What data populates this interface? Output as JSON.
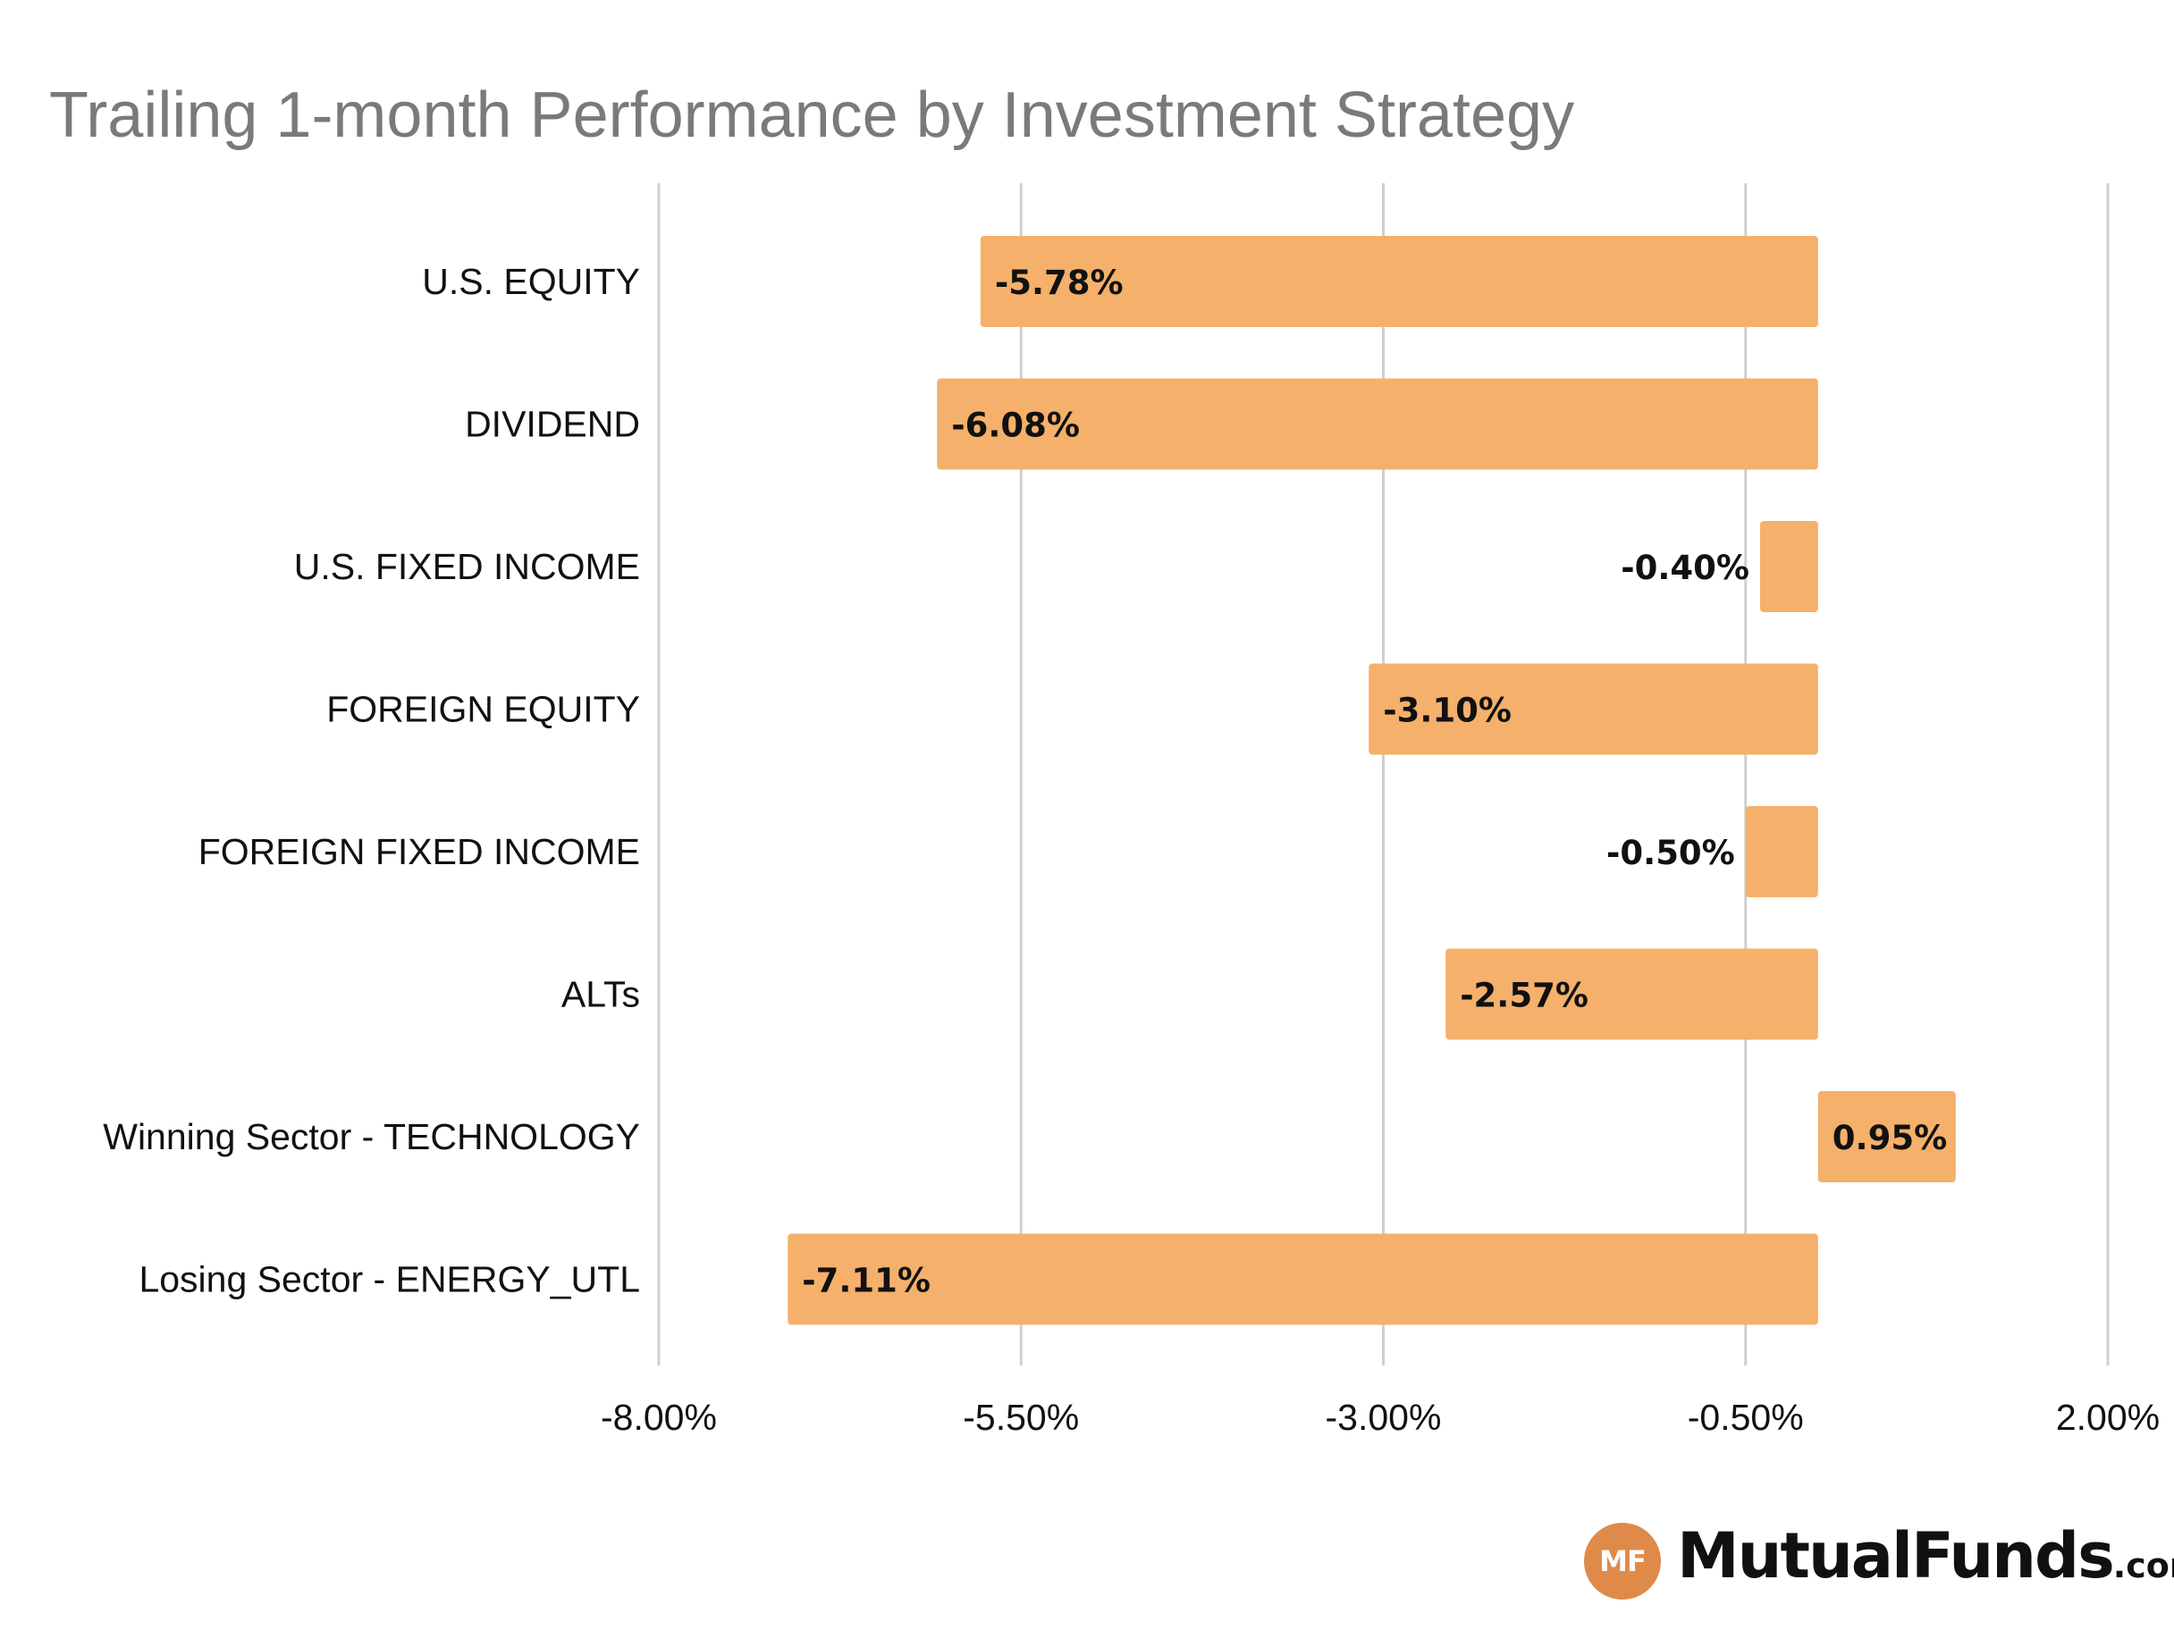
{
  "chart_data": {
    "type": "bar",
    "orientation": "horizontal",
    "title": "Trailing 1-month Performance by Investment Strategy",
    "xlabel": "",
    "ylabel": "",
    "categories": [
      "U.S. EQUITY",
      "DIVIDEND",
      "U.S. FIXED INCOME",
      "FOREIGN EQUITY",
      "FOREIGN FIXED INCOME",
      "ALTs",
      "Winning Sector - TECHNOLOGY",
      "Losing Sector - ENERGY_UTL"
    ],
    "values": [
      -5.78,
      -6.08,
      -0.4,
      -3.1,
      -0.5,
      -2.57,
      0.95,
      -7.11
    ],
    "data_labels": [
      "-5.78%",
      "-6.08%",
      "-0.40%",
      "-3.10%",
      "-0.50%",
      "-2.57%",
      "0.95%",
      "-7.11%"
    ],
    "xlim": [
      -8.0,
      2.0
    ],
    "xticks": [
      -8.0,
      -5.5,
      -3.0,
      -0.5,
      2.0
    ],
    "xtick_labels": [
      "-8.00%",
      "-5.50%",
      "-3.00%",
      "-0.50%",
      "2.00%"
    ],
    "grid": "vertical",
    "legend": "none",
    "colors": {
      "bar": "#f5b06b",
      "grid": "#cfcfcf",
      "title": "#7a7a7a"
    }
  },
  "logo": {
    "badge": "MF",
    "name": "MutualFunds",
    "suffix": ".com",
    "color": "#e08a4a"
  }
}
